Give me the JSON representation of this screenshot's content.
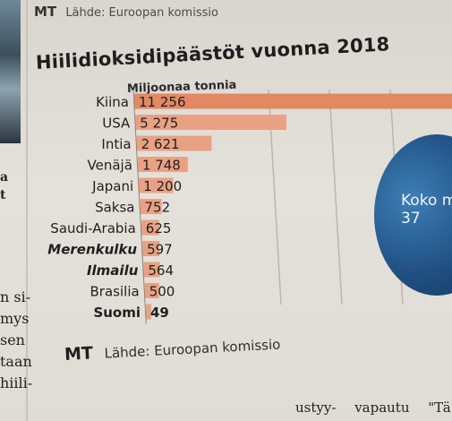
{
  "header": {
    "logo": "MT",
    "source": "Lähde: Euroopan komissio"
  },
  "title": "Hiilidioksidipäästöt vuonna 2018",
  "unit_label": "Miljoonaa tonnia",
  "footer": {
    "logo": "MT",
    "source": "Lähde: Euroopan komissio"
  },
  "globe": {
    "text": "Koko m",
    "subtext": "37"
  },
  "side_text": {
    "top": [
      "a",
      "t"
    ],
    "lines": [
      "n si-",
      "mys",
      "sen",
      "taan",
      "hiili-"
    ]
  },
  "bottom_text": [
    "ustyy-",
    "vapautu",
    "\"Tä"
  ],
  "colors": {
    "bar": "#e9a184",
    "bar_top": "#e38862",
    "text": "#1f1f1f"
  },
  "chart_data": {
    "type": "bar",
    "orientation": "horizontal",
    "title": "Hiilidioksidipäästöt vuonna 2018",
    "unit": "Miljoonaa tonnia",
    "categories": [
      "Kiina",
      "USA",
      "Intia",
      "Venäjä",
      "Japani",
      "Saksa",
      "Saudi-Arabia",
      "Merenkulku",
      "Ilmailu",
      "Brasilia",
      "Suomi"
    ],
    "values": [
      11256,
      5275,
      2621,
      1748,
      1200,
      752,
      625,
      597,
      564,
      500,
      49
    ],
    "value_labels": [
      "11 256",
      "5 275",
      "2 621",
      "1 748",
      "1 200",
      "752",
      "625",
      "597",
      "564",
      "500",
      "49"
    ],
    "italic_categories": [
      "Merenkulku",
      "Ilmailu"
    ],
    "bold_categories": [
      "Suomi"
    ],
    "source": "Lähde: Euroopan komissio"
  }
}
